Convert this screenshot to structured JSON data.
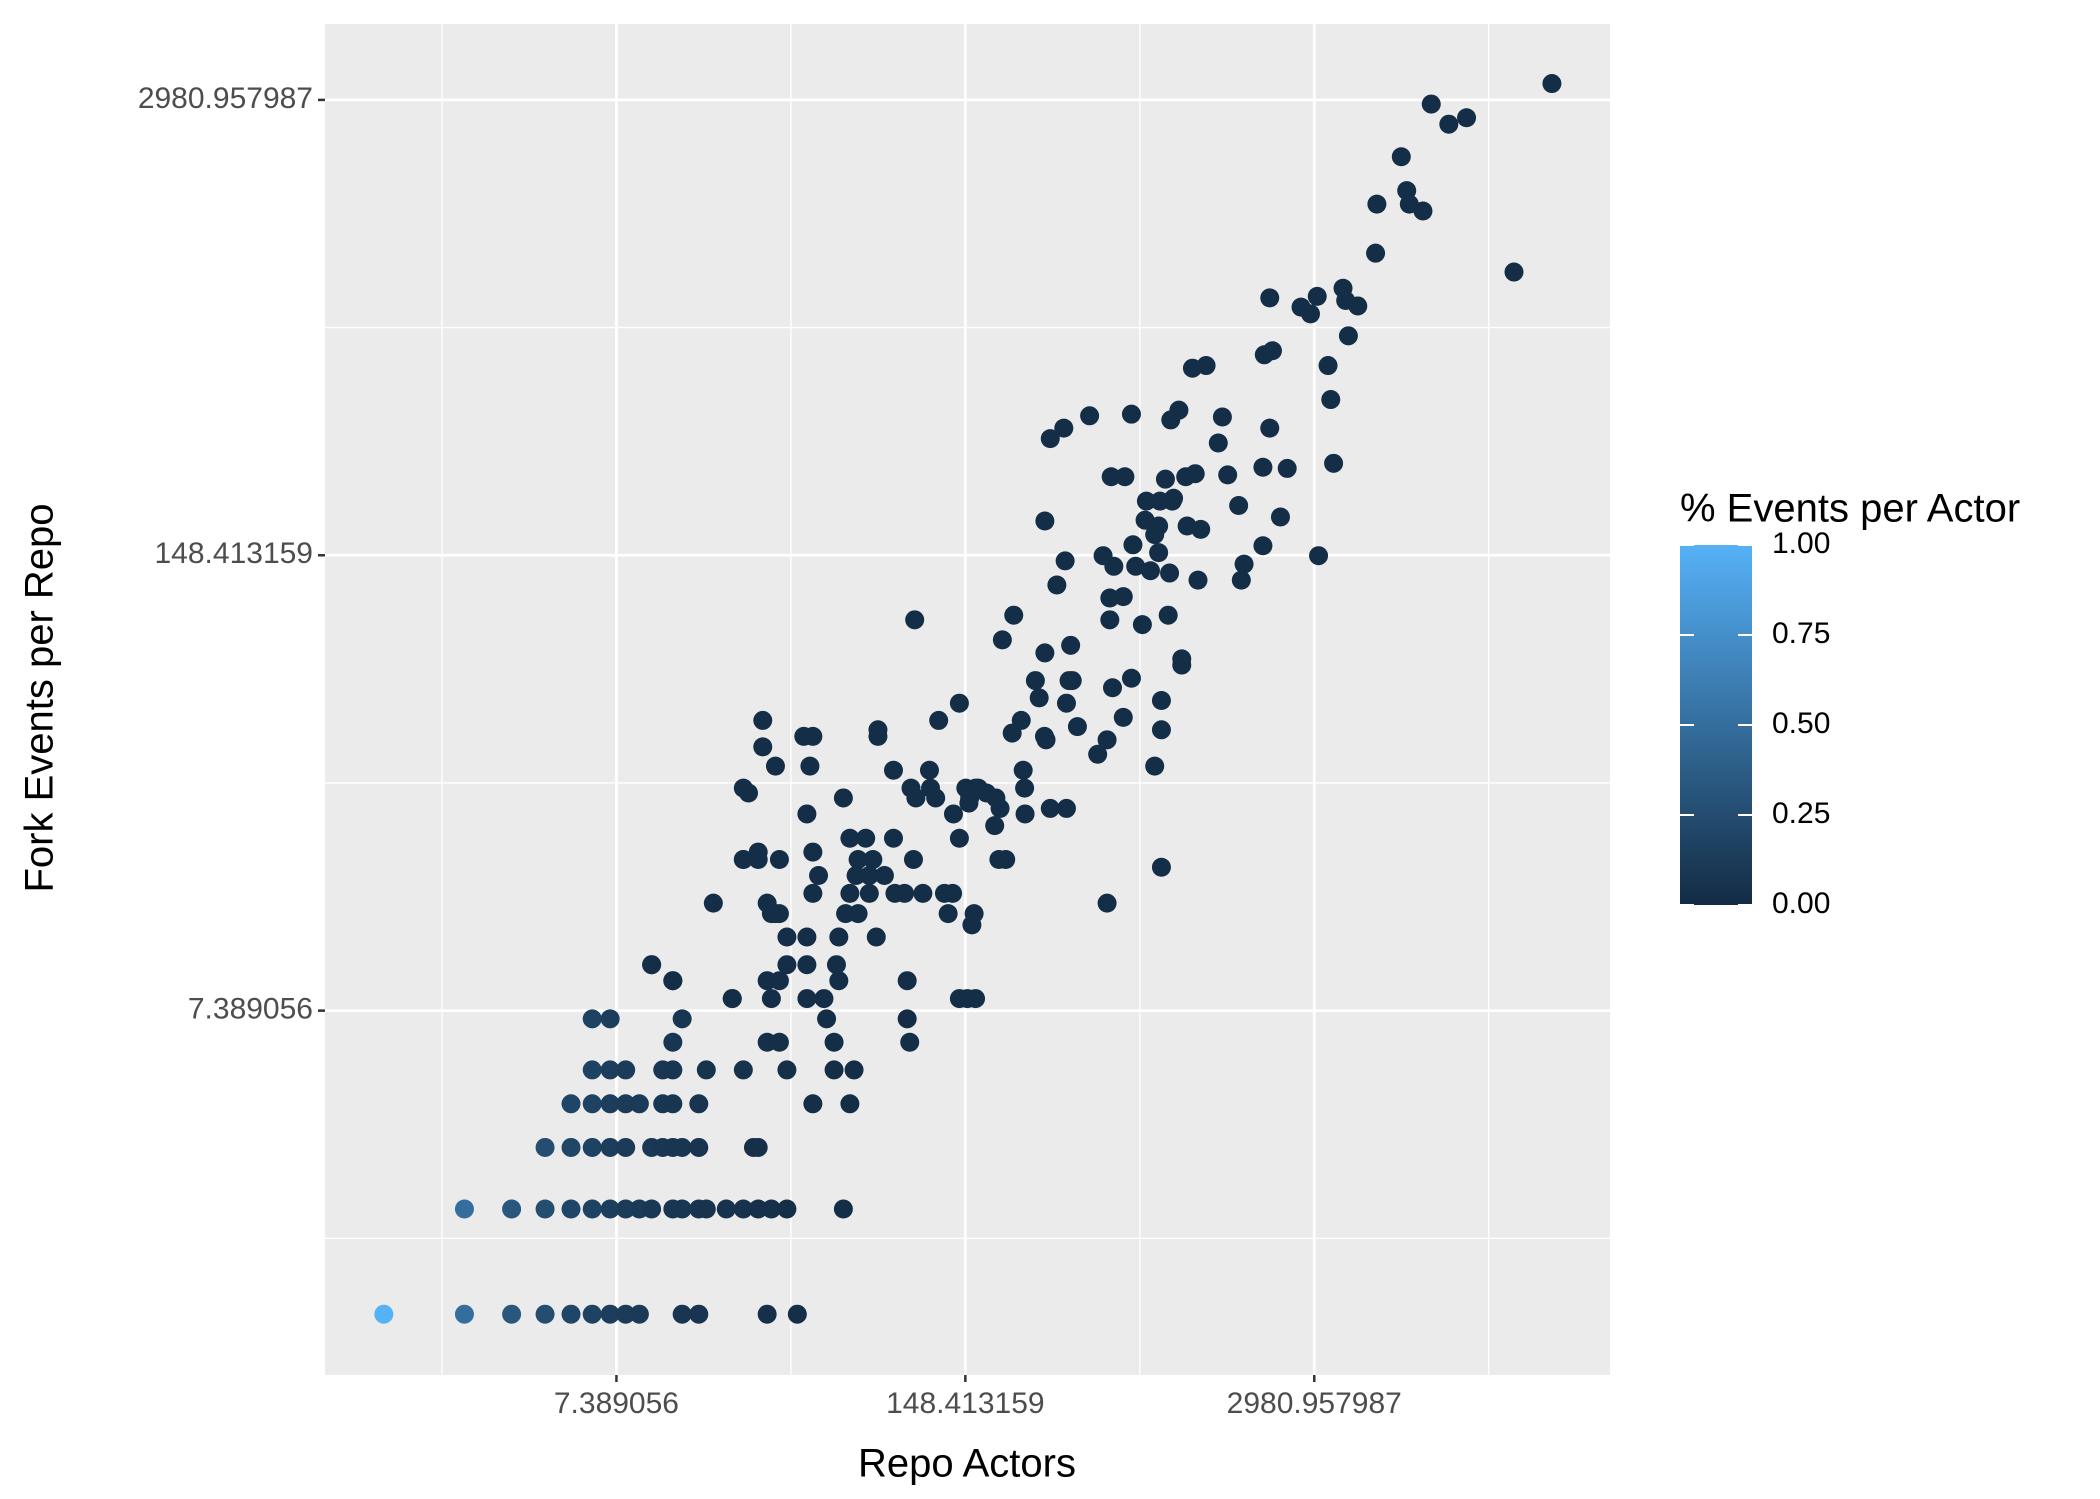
{
  "chart_data": {
    "type": "scatter",
    "x_label": "Repo Actors",
    "y_label": "Fork Events per Repo",
    "xscale": "log",
    "yscale": "log",
    "xlim": [
      0.603,
      37900
    ],
    "ylim": [
      0.67,
      4915
    ],
    "xticks": [
      7.389056,
      148.413159,
      2980.957987
    ],
    "yticks": [
      7.389056,
      148.413159,
      2980.957987
    ],
    "grid": true,
    "x": [
      1,
      2,
      3,
      4,
      5,
      6,
      7,
      8,
      9,
      13,
      15,
      27,
      35,
      2,
      3,
      4,
      5,
      6,
      7,
      8,
      9,
      10,
      12,
      13,
      15,
      16,
      19,
      22,
      25,
      28,
      32,
      52,
      4,
      5,
      6,
      7,
      8,
      10,
      11,
      12,
      13,
      15,
      24,
      25,
      5,
      6,
      7,
      8,
      9,
      11,
      12,
      15,
      40,
      55,
      6,
      7,
      8,
      11,
      12,
      16,
      22,
      32,
      48,
      57,
      12,
      27,
      30,
      48,
      6,
      7,
      13,
      45,
      90,
      20,
      28,
      38,
      44,
      141,
      162,
      12,
      27,
      30,
      50,
      90,
      10,
      32,
      38,
      49,
      32,
      38,
      50,
      69,
      28,
      30,
      53,
      59,
      128,
      160,
      40,
      55,
      65,
      81,
      88,
      103,
      124,
      133,
      42,
      58,
      65,
      74,
      22,
      25,
      30,
      59,
      67,
      95,
      198,
      55,
      63,
      80,
      141,
      38,
      134,
      248,
      52,
      97,
      115,
      154,
      193,
      22,
      93,
      110,
      149,
      166,
      80,
      109,
      244,
      37,
      40,
      70,
      293,
      26,
      118,
      240,
      141,
      354,
      271,
      372,
      204,
      225,
      294,
      367,
      362,
      280,
      389,
      297,
      222,
      247,
      308,
      354,
      463,
      502,
      577,
      526,
      619,
      801,
      801,
      756,
      801,
      502,
      210,
      191,
      200,
      178,
      162,
      153,
      157,
      151,
      92,
      96,
      70,
      26,
      23,
      29,
      39,
      40,
      25,
      22,
      17,
      10,
      12,
      20,
      27,
      29,
      294,
      350,
      326,
      485,
      532,
      627,
      642,
      696,
      756,
      782,
      729,
      859,
      849,
      680,
      577,
      514,
      514,
      954,
      954,
      1097,
      1592,
      1630,
      1917,
      1123,
      999,
      791,
      879,
      829,
      704,
      987,
      1071,
      1416,
      1556,
      1917,
      2229,
      2362,
      3093,
      3520,
      2033,
      1306,
      1353,
      931,
      868,
      1046,
      1176,
      619,
      432,
      308,
      346,
      520,
      585,
      1940,
      2081,
      3356,
      3435,
      3998,
      2660,
      2886,
      3058,
      3817,
      3905,
      4334,
      2033,
      5050,
      5107,
      6300,
      6600,
      6750,
      7590,
      8150,
      9480,
      11040,
      16600,
      23000,
      782,
      889
    ],
    "values": [
      1,
      1,
      1,
      1,
      1,
      1,
      1,
      1,
      1,
      1,
      1,
      1,
      1,
      2,
      2,
      2,
      2,
      2,
      2,
      2,
      2,
      2,
      2,
      2,
      2,
      2,
      2,
      2,
      2,
      2,
      2,
      2,
      3,
      3,
      3,
      3,
      3,
      3,
      3,
      3,
      3,
      3,
      3,
      3,
      4,
      4,
      4,
      4,
      4,
      4,
      4,
      4,
      4,
      4,
      5,
      5,
      5,
      5,
      5,
      5,
      5,
      5,
      5,
      5,
      6,
      6,
      6,
      6,
      7,
      7,
      7,
      7,
      7,
      8,
      8,
      8,
      8,
      8,
      8,
      9,
      9,
      9,
      9,
      9,
      10,
      10,
      10,
      10,
      12,
      12,
      12,
      12,
      14,
      14,
      14,
      14,
      14,
      14,
      16,
      16,
      16,
      16,
      16,
      16,
      16,
      16,
      18,
      18,
      18,
      18,
      20,
      20,
      20,
      20,
      20,
      20,
      20,
      23,
      23,
      23,
      23,
      27,
      27,
      27,
      30,
      30,
      30,
      30,
      30,
      32,
      32,
      32,
      32,
      32,
      36,
      36,
      36,
      45,
      45,
      45,
      45,
      50,
      50,
      50,
      56,
      56,
      65,
      65,
      85,
      100,
      78,
      82,
      65,
      58,
      48,
      44,
      46,
      32,
      28,
      28,
      40,
      44,
      51,
      62,
      66,
      57,
      47,
      37,
      19,
      15,
      20,
      25,
      28,
      31,
      32,
      29,
      13,
      8,
      6,
      97,
      47,
      42,
      31,
      37,
      37,
      21,
      21,
      20,
      15,
      10,
      9,
      8,
      15,
      14,
      186,
      143,
      122,
      148,
      138,
      159,
      138,
      187,
      170,
      151,
      134,
      132,
      100,
      94,
      113,
      112,
      97,
      75,
      72,
      126,
      126,
      140,
      158,
      176,
      180,
      212,
      212,
      245,
      212,
      249,
      254,
      252,
      206,
      265,
      191,
      263,
      148,
      272,
      343,
      311,
      369,
      386,
      362,
      509,
      518,
      376,
      372,
      320,
      343,
      249,
      249,
      556,
      571,
      518,
      414,
      630,
      761,
      728,
      817,
      862,
      795,
      767,
      809,
      1086,
      1500,
      2050,
      1640,
      1500,
      1434,
      2900,
      2540,
      2650,
      959,
      3320,
      180,
      216
    ],
    "color_values": [
      1,
      0.5,
      0.33,
      0.25,
      0.2,
      0.17,
      0.14,
      0.12,
      0.11,
      0.08,
      0.07,
      0.04,
      0.03,
      0.5,
      0.33,
      0.25,
      0.2,
      0.17,
      0.14,
      0.12,
      0.11,
      0.1,
      0.08,
      0.08,
      0.07,
      0.06,
      0.05,
      0.05,
      0.04,
      0.04,
      0.03,
      0.02,
      0.25,
      0.2,
      0.17,
      0.14,
      0.12,
      0.1,
      0.09,
      0.08,
      0.08,
      0.07,
      0.04,
      0.04,
      0.2,
      0.17,
      0.14,
      0.12,
      0.11,
      0.09,
      0.08,
      0.07,
      0.03,
      0.02,
      0.17,
      0.14,
      0.12,
      0.09,
      0.08,
      0.06,
      0.05,
      0.03,
      0.02,
      0.02,
      0.08,
      0.04,
      0.03,
      0.02,
      0.17,
      0.14,
      0.08,
      0.02,
      0.01,
      0.02,
      0.02,
      0.02,
      0.02,
      0.02,
      0.02,
      0.02,
      0.02,
      0.02,
      0.02,
      0.02,
      0.02,
      0.02,
      0.02,
      0.02,
      0.02,
      0.02,
      0.02,
      0.02,
      0.02,
      0.02,
      0.02,
      0.02,
      0.02,
      0.02,
      0.02,
      0.02,
      0.02,
      0.02,
      0.02,
      0.02,
      0.02,
      0.02,
      0.02,
      0.02,
      0.02,
      0.02,
      0.02,
      0.02,
      0.02,
      0.02,
      0.02,
      0.02,
      0.02,
      0.02,
      0.02,
      0.02,
      0.02,
      0.02,
      0.02,
      0.02,
      0.02,
      0.02,
      0.02,
      0.02,
      0.02,
      0.02,
      0.02,
      0.02,
      0.02,
      0.02,
      0.02,
      0.02,
      0.02,
      0.02,
      0.02,
      0.02,
      0.02,
      0.02,
      0.02,
      0.02,
      0.02,
      0.02,
      0.02,
      0.02,
      0.02,
      0.02,
      0.02,
      0.02,
      0.02,
      0.02,
      0.02,
      0.02,
      0.02,
      0.02,
      0.02,
      0.02,
      0.02,
      0.02,
      0.02,
      0.02,
      0.02,
      0.02,
      0.02,
      0.02,
      0.02,
      0.02,
      0.02,
      0.02,
      0.02,
      0.02,
      0.02,
      0.02,
      0.02,
      0.02,
      0.02,
      0.02,
      0.02,
      0.02,
      0.02,
      0.02,
      0.02,
      0.02,
      0.02,
      0.02,
      0.02,
      0.02,
      0.02,
      0.02,
      0.02,
      0.02,
      0.02,
      0.02,
      0.02,
      0.02,
      0.02,
      0.02,
      0.02,
      0.02,
      0.02,
      0.02,
      0.02,
      0.02,
      0.02,
      0.02,
      0.02,
      0.02,
      0.02,
      0.02,
      0.02,
      0.02,
      0.02,
      0.02,
      0.02,
      0.02,
      0.02,
      0.02,
      0.02,
      0.02,
      0.02,
      0.02,
      0.02,
      0.02,
      0.02,
      0.02,
      0.02,
      0.02,
      0.02,
      0.02,
      0.02,
      0.02,
      0.02,
      0.02,
      0.02,
      0.02,
      0.02,
      0.02,
      0.02,
      0.02,
      0.02,
      0.02,
      0.02,
      0.02,
      0.02,
      0.02,
      0.02,
      0.02,
      0.02,
      0.02,
      0.02,
      0.02,
      0.02,
      0.02,
      0.02,
      0.02,
      0.02,
      0.02,
      0.02,
      0.02,
      0.02,
      0.02,
      0.02,
      0.02,
      0.02,
      0.02,
      0.02,
      0.02
    ],
    "colorbar": {
      "title": "% Events per Actor",
      "lim": [
        0,
        1
      ],
      "low": "#132B43",
      "high": "#56B1F7",
      "ticks": [
        {
          "value": 0,
          "label": "0.00"
        },
        {
          "value": 0.25,
          "label": "0.25"
        },
        {
          "value": 0.5,
          "label": "0.50"
        },
        {
          "value": 0.75,
          "label": "0.75"
        },
        {
          "value": 1,
          "label": "1.00"
        }
      ]
    }
  }
}
